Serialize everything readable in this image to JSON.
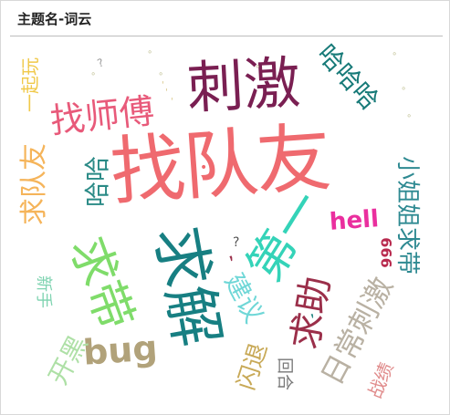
{
  "header": {
    "title": "主题名-词云"
  },
  "words": [
    {
      "id": "w-zhaoduiyou",
      "text": "找队友",
      "color": "#ef6a6f"
    },
    {
      "id": "w-ciji",
      "text": "刺激",
      "color": "#7a1f52"
    },
    {
      "id": "w-zhaoshifu",
      "text": "找师傅",
      "color": "#e85a7a"
    },
    {
      "id": "w-hahaha",
      "text": "哈哈哈",
      "color": "#177a78"
    },
    {
      "id": "w-qiudai1",
      "text": "求带",
      "color": "#7fdc6a"
    },
    {
      "id": "w-qiujie",
      "text": "求解",
      "color": "#177f82"
    },
    {
      "id": "w-diyi",
      "text": "第一",
      "color": "#34d3b8"
    },
    {
      "id": "w-qiuzhu",
      "text": "求助",
      "color": "#9b2f4a"
    },
    {
      "id": "w-richangciji",
      "text": "日常刺激",
      "color": "#b9b1a3"
    },
    {
      "id": "w-xiaojiejieqiudai",
      "text": "小姐姐求带",
      "color": "#2f8a92"
    },
    {
      "id": "w-hell",
      "text": "hell",
      "color": "#ea2f9e"
    },
    {
      "id": "w-666",
      "text": "666",
      "color": "#b82a4e"
    },
    {
      "id": "w-bug",
      "text": "bug",
      "color": "#b1a27a"
    },
    {
      "id": "w-jianyi",
      "text": "建议",
      "color": "#6fd7d7"
    },
    {
      "id": "w-shantui",
      "text": "闪退",
      "color": "#c8a957"
    },
    {
      "id": "w-huihe",
      "text": "回合",
      "color": "#777777"
    },
    {
      "id": "w-zhanji",
      "text": "战绩",
      "color": "#e08a8a"
    },
    {
      "id": "w-kaihei",
      "text": "开黑",
      "color": "#aee0a6"
    },
    {
      "id": "w-xinshou",
      "text": "新手",
      "color": "#7ed3b0"
    },
    {
      "id": "w-qiuduiyou",
      "text": "求队友",
      "color": "#f5b45a"
    },
    {
      "id": "w-haha",
      "text": "哈哈",
      "color": "#2a8a86"
    },
    {
      "id": "w-yiqiwan",
      "text": "一起玩",
      "color": "#f0c94a"
    },
    {
      "id": "w-q1",
      "text": "?",
      "color": "#555555"
    },
    {
      "id": "w-q2",
      "text": "?",
      "color": "#999999"
    }
  ],
  "decorations": {
    "dot_color": "#c8c8a0",
    "comma_color": "#9b2f4a"
  }
}
